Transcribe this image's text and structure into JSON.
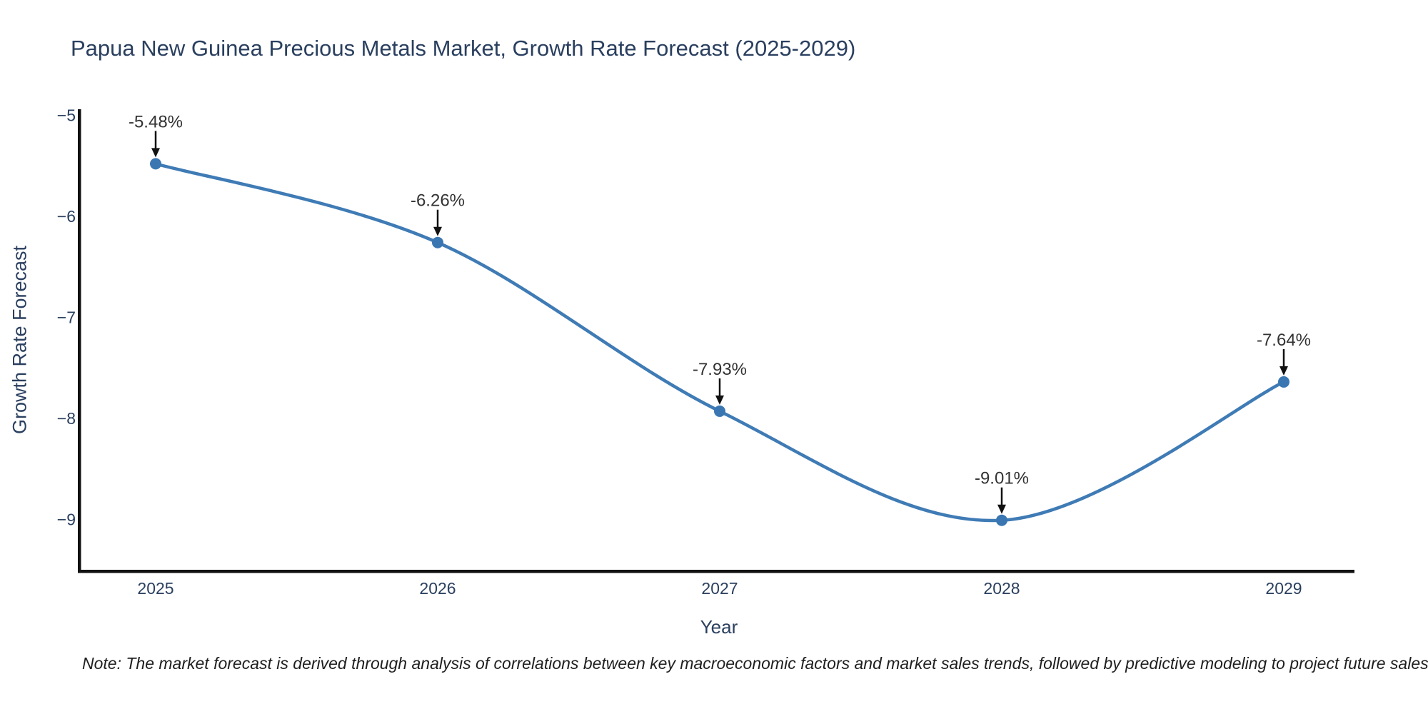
{
  "note": "Note: The market forecast is derived through analysis of correlations between key macroeconomic factors and market sales trends, followed by predictive modeling to project future sales",
  "chart_data": {
    "type": "line",
    "title": "Papua New Guinea Precious Metals Market, Growth Rate Forecast (2025-2029)",
    "xlabel": "Year",
    "ylabel": "Growth Rate Forecast",
    "x": [
      2025,
      2026,
      2027,
      2028,
      2029
    ],
    "values": [
      -5.48,
      -6.26,
      -7.93,
      -9.01,
      -7.64
    ],
    "point_labels": [
      "-5.48%",
      "-6.26%",
      "-7.93%",
      "-9.01%",
      "-7.64%"
    ],
    "yticks": [
      -5,
      -6,
      -7,
      -8,
      -9
    ],
    "ytick_labels": [
      "−5",
      "−6",
      "−7",
      "−8",
      "−9"
    ],
    "ylim": [
      -9.5,
      -4.94
    ],
    "line_shape": "spline",
    "grid": false,
    "legend": "none",
    "colors": {
      "line": "#3f7bb5",
      "marker": "#3a77b2",
      "axis": "#111111",
      "arrow": "#111111",
      "text": "#2a3f5f",
      "annotation": "#333333"
    }
  }
}
